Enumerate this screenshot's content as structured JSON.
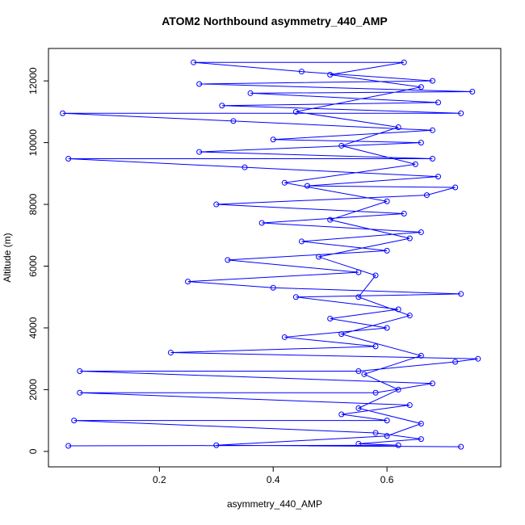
{
  "chart_data": {
    "type": "line",
    "title": "ATOM2 Northbound asymmetry_440_AMP",
    "x_label": "asymmetry_440_AMP",
    "y_label": "Altitude (m)",
    "xlim": [
      0.005,
      0.8
    ],
    "ylim": [
      -500,
      13050
    ],
    "xticks": [
      0.2,
      0.4,
      0.6
    ],
    "yticks": [
      0,
      2000,
      4000,
      6000,
      8000,
      10000,
      12000
    ],
    "color": "#0000ff",
    "markers": true,
    "grid": false,
    "x": [
      0.04,
      0.62,
      0.55,
      0.66,
      0.58,
      0.05,
      0.6,
      0.52,
      0.64,
      0.06,
      0.58,
      0.68,
      0.06,
      0.55,
      0.72,
      0.76,
      0.22,
      0.58,
      0.42,
      0.6,
      0.5,
      0.62,
      0.44,
      0.73,
      0.4,
      0.25,
      0.55,
      0.32,
      0.6,
      0.45,
      0.66,
      0.38,
      0.63,
      0.3,
      0.67,
      0.72,
      0.46,
      0.69,
      0.35,
      0.04,
      0.68,
      0.27,
      0.66,
      0.4,
      0.68,
      0.33,
      0.03,
      0.73,
      0.31,
      0.69,
      0.36,
      0.75,
      0.27,
      0.68,
      0.45,
      0.26,
      0.63,
      0.5,
      0.66,
      0.44,
      0.62,
      0.52,
      0.65,
      0.42,
      0.6,
      0.5,
      0.64,
      0.48,
      0.58,
      0.55,
      0.64,
      0.52,
      0.66,
      0.56,
      0.62,
      0.55,
      0.66,
      0.6,
      0.3,
      0.73
    ],
    "values": [
      180,
      200,
      250,
      400,
      600,
      1000,
      1000,
      1200,
      1500,
      1900,
      1900,
      2200,
      2600,
      2600,
      2900,
      3000,
      3200,
      3400,
      3700,
      4000,
      4300,
      4600,
      5000,
      5100,
      5300,
      5500,
      5800,
      6200,
      6500,
      6800,
      7100,
      7400,
      7700,
      8000,
      8300,
      8550,
      8600,
      8900,
      9200,
      9480,
      9480,
      9700,
      10000,
      10100,
      10400,
      10700,
      10950,
      10950,
      11200,
      11300,
      11600,
      11650,
      11900,
      12000,
      12300,
      12600,
      12600,
      12200,
      11800,
      11000,
      10500,
      9900,
      9300,
      8700,
      8100,
      7500,
      6900,
      6300,
      5700,
      5000,
      4400,
      3800,
      3100,
      2500,
      2000,
      1400,
      900,
      500,
      200,
      150
    ]
  }
}
